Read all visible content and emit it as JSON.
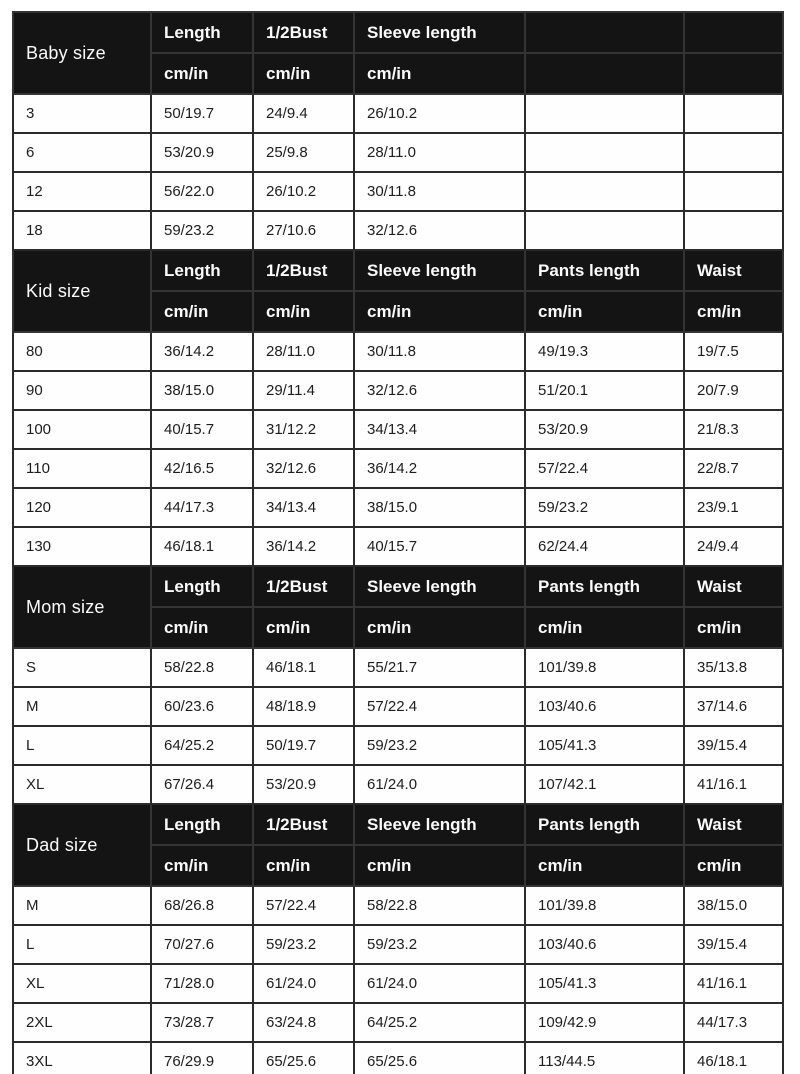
{
  "colors": {
    "header_bg": "#141414",
    "header_text": "#fafafa",
    "body_text": "#1d1d1d",
    "border": "#2b2b2b",
    "page_bg": "#ffffff"
  },
  "table": {
    "sections": [
      {
        "label": "Baby size",
        "columns": [
          "Length",
          "1/2Bust",
          "Sleeve length",
          "",
          ""
        ],
        "units": [
          "cm/in",
          "cm/in",
          "cm/in",
          "",
          ""
        ],
        "rows": [
          {
            "size": "3",
            "values": [
              "50/19.7",
              "24/9.4",
              "26/10.2",
              "",
              ""
            ]
          },
          {
            "size": "6",
            "values": [
              "53/20.9",
              "25/9.8",
              "28/11.0",
              "",
              ""
            ]
          },
          {
            "size": "12",
            "values": [
              "56/22.0",
              "26/10.2",
              "30/11.8",
              "",
              ""
            ]
          },
          {
            "size": "18",
            "values": [
              "59/23.2",
              "27/10.6",
              "32/12.6",
              "",
              ""
            ]
          }
        ]
      },
      {
        "label": "Kid size",
        "columns": [
          "Length",
          "1/2Bust",
          "Sleeve length",
          "Pants length",
          "Waist"
        ],
        "units": [
          "cm/in",
          "cm/in",
          "cm/in",
          "cm/in",
          "cm/in"
        ],
        "rows": [
          {
            "size": "80",
            "values": [
              "36/14.2",
              "28/11.0",
              "30/11.8",
              "49/19.3",
              "19/7.5"
            ]
          },
          {
            "size": "90",
            "values": [
              "38/15.0",
              "29/11.4",
              "32/12.6",
              "51/20.1",
              "20/7.9"
            ]
          },
          {
            "size": "100",
            "values": [
              "40/15.7",
              "31/12.2",
              "34/13.4",
              "53/20.9",
              "21/8.3"
            ]
          },
          {
            "size": "110",
            "values": [
              "42/16.5",
              "32/12.6",
              "36/14.2",
              "57/22.4",
              "22/8.7"
            ]
          },
          {
            "size": "120",
            "values": [
              "44/17.3",
              "34/13.4",
              "38/15.0",
              "59/23.2",
              "23/9.1"
            ]
          },
          {
            "size": "130",
            "values": [
              "46/18.1",
              "36/14.2",
              "40/15.7",
              "62/24.4",
              "24/9.4"
            ]
          }
        ]
      },
      {
        "label": "Mom size",
        "columns": [
          "Length",
          "1/2Bust",
          "Sleeve length",
          "Pants length",
          "Waist"
        ],
        "units": [
          "cm/in",
          "cm/in",
          "cm/in",
          "cm/in",
          "cm/in"
        ],
        "rows": [
          {
            "size": "S",
            "values": [
              "58/22.8",
              "46/18.1",
              "55/21.7",
              "101/39.8",
              "35/13.8"
            ]
          },
          {
            "size": "M",
            "values": [
              "60/23.6",
              "48/18.9",
              "57/22.4",
              "103/40.6",
              "37/14.6"
            ]
          },
          {
            "size": "L",
            "values": [
              "64/25.2",
              "50/19.7",
              "59/23.2",
              "105/41.3",
              "39/15.4"
            ]
          },
          {
            "size": "XL",
            "values": [
              "67/26.4",
              "53/20.9",
              "61/24.0",
              "107/42.1",
              "41/16.1"
            ]
          }
        ]
      },
      {
        "label": "Dad size",
        "columns": [
          "Length",
          "1/2Bust",
          "Sleeve length",
          "Pants length",
          "Waist"
        ],
        "units": [
          "cm/in",
          "cm/in",
          "cm/in",
          "cm/in",
          "cm/in"
        ],
        "rows": [
          {
            "size": "M",
            "values": [
              "68/26.8",
              "57/22.4",
              "58/22.8",
              "101/39.8",
              "38/15.0"
            ]
          },
          {
            "size": "L",
            "values": [
              "70/27.6",
              "59/23.2",
              "59/23.2",
              "103/40.6",
              "39/15.4"
            ]
          },
          {
            "size": "XL",
            "values": [
              "71/28.0",
              "61/24.0",
              "61/24.0",
              "105/41.3",
              "41/16.1"
            ]
          },
          {
            "size": "2XL",
            "values": [
              "73/28.7",
              "63/24.8",
              "64/25.2",
              "109/42.9",
              "44/17.3"
            ]
          },
          {
            "size": "3XL",
            "values": [
              "76/29.9",
              "65/25.6",
              "65/25.6",
              "113/44.5",
              "46/18.1"
            ]
          }
        ]
      }
    ]
  }
}
